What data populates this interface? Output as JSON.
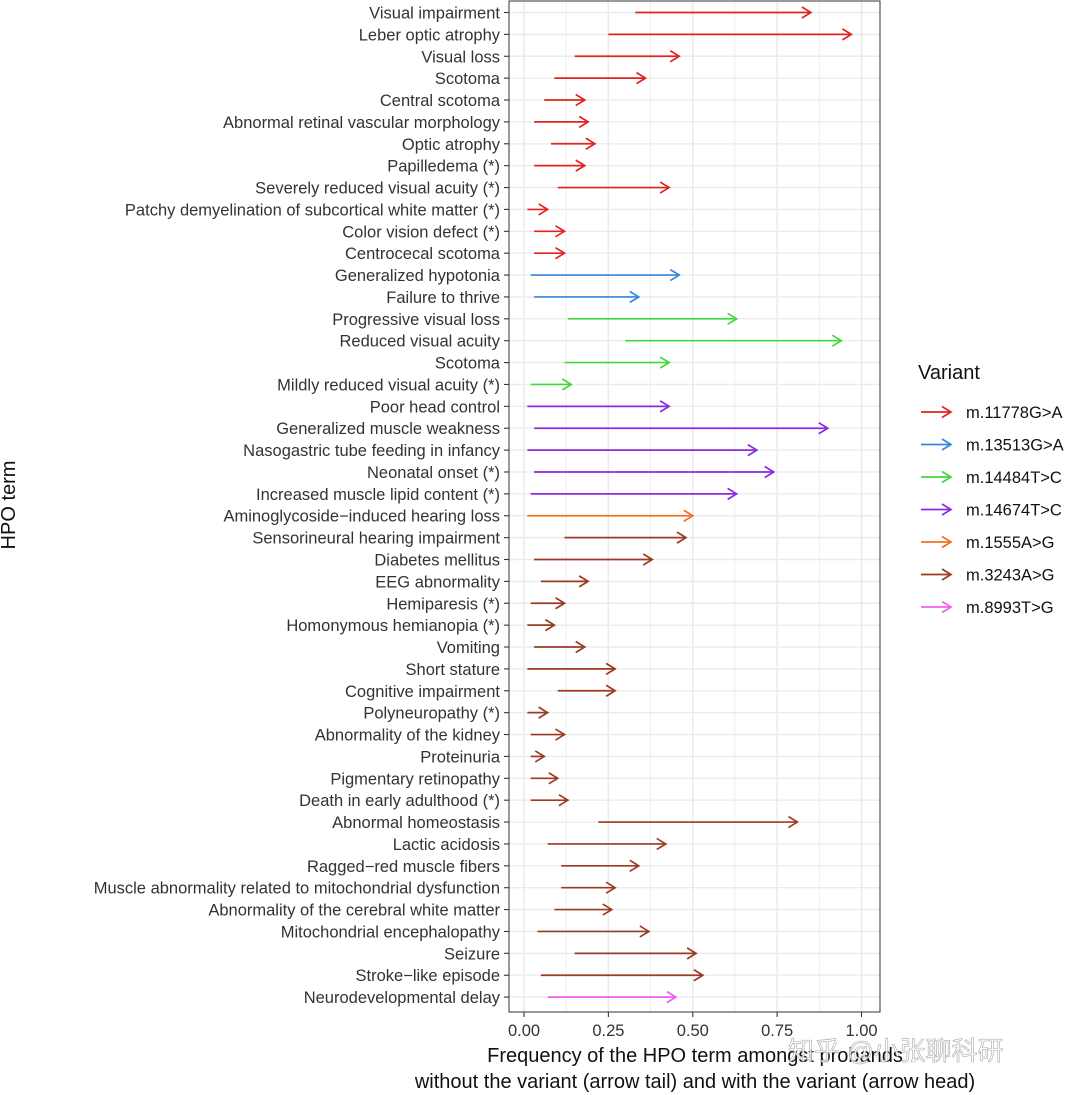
{
  "chart_data": {
    "type": "arrow-range",
    "title": "",
    "xlabel_line1": "Frequency of the HPO term amongst probands",
    "xlabel_line2": "without the variant (arrow tail) and with the variant (arrow head)",
    "ylabel": "HPO term",
    "xlim": [
      0,
      1
    ],
    "xticks": [
      "0.00",
      "0.25",
      "0.50",
      "0.75",
      "1.00"
    ],
    "xtick_values": [
      0,
      0.25,
      0.5,
      0.75,
      1.0
    ],
    "grid": true,
    "legend_title": "Variant",
    "legend_position": "right",
    "series": [
      {
        "name": "m.11778G>A",
        "color": "#e3231f"
      },
      {
        "name": "m.13513G>A",
        "color": "#3586dd"
      },
      {
        "name": "m.14484T>C",
        "color": "#3fd93b"
      },
      {
        "name": "m.14674T>C",
        "color": "#8a2be2"
      },
      {
        "name": "m.1555A>G",
        "color": "#f07026"
      },
      {
        "name": "m.3243A>G",
        "color": "#9a3b22"
      },
      {
        "name": "m.8993T>G",
        "color": "#f060f0"
      }
    ],
    "items": [
      {
        "term": "Visual impairment",
        "variant": "m.11778G>A",
        "tail": 0.33,
        "head": 0.85
      },
      {
        "term": "Leber optic atrophy",
        "variant": "m.11778G>A",
        "tail": 0.25,
        "head": 0.97
      },
      {
        "term": "Visual loss",
        "variant": "m.11778G>A",
        "tail": 0.15,
        "head": 0.46
      },
      {
        "term": "Scotoma",
        "variant": "m.11778G>A",
        "tail": 0.09,
        "head": 0.36
      },
      {
        "term": "Central scotoma",
        "variant": "m.11778G>A",
        "tail": 0.06,
        "head": 0.18
      },
      {
        "term": "Abnormal retinal vascular morphology",
        "variant": "m.11778G>A",
        "tail": 0.03,
        "head": 0.19
      },
      {
        "term": "Optic atrophy",
        "variant": "m.11778G>A",
        "tail": 0.08,
        "head": 0.21
      },
      {
        "term": "Papilledema (*)",
        "variant": "m.11778G>A",
        "tail": 0.03,
        "head": 0.18
      },
      {
        "term": "Severely reduced visual acuity (*)",
        "variant": "m.11778G>A",
        "tail": 0.1,
        "head": 0.43
      },
      {
        "term": "Patchy demyelination of subcortical white matter (*)",
        "variant": "m.11778G>A",
        "tail": 0.01,
        "head": 0.07
      },
      {
        "term": "Color vision defect (*)",
        "variant": "m.11778G>A",
        "tail": 0.03,
        "head": 0.12
      },
      {
        "term": "Centrocecal scotoma",
        "variant": "m.11778G>A",
        "tail": 0.03,
        "head": 0.12
      },
      {
        "term": "Generalized hypotonia",
        "variant": "m.13513G>A",
        "tail": 0.02,
        "head": 0.46
      },
      {
        "term": "Failure to thrive",
        "variant": "m.13513G>A",
        "tail": 0.03,
        "head": 0.34
      },
      {
        "term": "Progressive visual loss",
        "variant": "m.14484T>C",
        "tail": 0.13,
        "head": 0.63
      },
      {
        "term": "Reduced visual acuity",
        "variant": "m.14484T>C",
        "tail": 0.3,
        "head": 0.94
      },
      {
        "term": "Scotoma",
        "variant": "m.14484T>C",
        "tail": 0.12,
        "head": 0.43
      },
      {
        "term": "Mildly reduced visual acuity (*)",
        "variant": "m.14484T>C",
        "tail": 0.02,
        "head": 0.14
      },
      {
        "term": "Poor head control",
        "variant": "m.14674T>C",
        "tail": 0.01,
        "head": 0.43
      },
      {
        "term": "Generalized muscle weakness",
        "variant": "m.14674T>C",
        "tail": 0.03,
        "head": 0.9
      },
      {
        "term": "Nasogastric tube feeding in infancy",
        "variant": "m.14674T>C",
        "tail": 0.01,
        "head": 0.69
      },
      {
        "term": "Neonatal onset (*)",
        "variant": "m.14674T>C",
        "tail": 0.03,
        "head": 0.74
      },
      {
        "term": "Increased muscle lipid content (*)",
        "variant": "m.14674T>C",
        "tail": 0.02,
        "head": 0.63
      },
      {
        "term": "Aminoglycoside−induced hearing loss",
        "variant": "m.1555A>G",
        "tail": 0.01,
        "head": 0.5
      },
      {
        "term": "Sensorineural hearing impairment",
        "variant": "m.3243A>G",
        "tail": 0.12,
        "head": 0.48
      },
      {
        "term": "Diabetes mellitus",
        "variant": "m.3243A>G",
        "tail": 0.03,
        "head": 0.38
      },
      {
        "term": "EEG abnormality",
        "variant": "m.3243A>G",
        "tail": 0.05,
        "head": 0.19
      },
      {
        "term": "Hemiparesis (*)",
        "variant": "m.3243A>G",
        "tail": 0.02,
        "head": 0.12
      },
      {
        "term": "Homonymous hemianopia (*)",
        "variant": "m.3243A>G",
        "tail": 0.01,
        "head": 0.09
      },
      {
        "term": "Vomiting",
        "variant": "m.3243A>G",
        "tail": 0.03,
        "head": 0.18
      },
      {
        "term": "Short stature",
        "variant": "m.3243A>G",
        "tail": 0.01,
        "head": 0.27
      },
      {
        "term": "Cognitive impairment",
        "variant": "m.3243A>G",
        "tail": 0.1,
        "head": 0.27
      },
      {
        "term": "Polyneuropathy (*)",
        "variant": "m.3243A>G",
        "tail": 0.01,
        "head": 0.07
      },
      {
        "term": "Abnormality of the kidney",
        "variant": "m.3243A>G",
        "tail": 0.02,
        "head": 0.12
      },
      {
        "term": "Proteinuria",
        "variant": "m.3243A>G",
        "tail": 0.02,
        "head": 0.06
      },
      {
        "term": "Pigmentary retinopathy",
        "variant": "m.3243A>G",
        "tail": 0.02,
        "head": 0.1
      },
      {
        "term": "Death in early adulthood (*)",
        "variant": "m.3243A>G",
        "tail": 0.02,
        "head": 0.13
      },
      {
        "term": "Abnormal homeostasis",
        "variant": "m.3243A>G",
        "tail": 0.22,
        "head": 0.81
      },
      {
        "term": "Lactic acidosis",
        "variant": "m.3243A>G",
        "tail": 0.07,
        "head": 0.42
      },
      {
        "term": "Ragged−red muscle fibers",
        "variant": "m.3243A>G",
        "tail": 0.11,
        "head": 0.34
      },
      {
        "term": "Muscle abnormality related to mitochondrial dysfunction",
        "variant": "m.3243A>G",
        "tail": 0.11,
        "head": 0.27
      },
      {
        "term": "Abnormality of the cerebral white matter",
        "variant": "m.3243A>G",
        "tail": 0.09,
        "head": 0.26
      },
      {
        "term": "Mitochondrial encephalopathy",
        "variant": "m.3243A>G",
        "tail": 0.04,
        "head": 0.37
      },
      {
        "term": "Seizure",
        "variant": "m.3243A>G",
        "tail": 0.15,
        "head": 0.51
      },
      {
        "term": "Stroke−like episode",
        "variant": "m.3243A>G",
        "tail": 0.05,
        "head": 0.53
      },
      {
        "term": "Neurodevelopmental delay",
        "variant": "m.8993T>G",
        "tail": 0.07,
        "head": 0.45
      }
    ]
  },
  "watermark": "知乎 @小张聊科研"
}
